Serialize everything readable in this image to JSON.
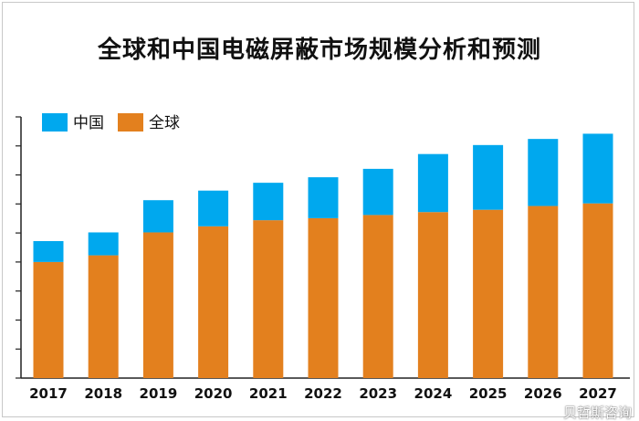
{
  "chart_data": {
    "type": "bar",
    "stacked": true,
    "title": "全球和中国电磁屏蔽市场规模分析和预测",
    "xlabel": "",
    "ylabel": "",
    "categories": [
      "2017",
      "2018",
      "2019",
      "2020",
      "2021",
      "2022",
      "2023",
      "2024",
      "2025",
      "2026",
      "2027"
    ],
    "series": [
      {
        "name": "全球",
        "color": "#E3801E",
        "values": [
          4.0,
          4.23,
          5.02,
          5.23,
          5.44,
          5.51,
          5.62,
          5.72,
          5.8,
          5.93,
          6.02
        ]
      },
      {
        "name": "中国",
        "color": "#00A8EE",
        "values": [
          0.72,
          0.79,
          1.11,
          1.23,
          1.29,
          1.41,
          1.59,
          2.0,
          2.23,
          2.31,
          2.4
        ]
      }
    ],
    "legend_order": [
      "中国",
      "全球"
    ],
    "ylim": [
      0,
      9
    ],
    "y_tick_labels_shown": false,
    "grid": false,
    "legend_position": "top-left"
  },
  "watermark": "贝哲斯咨询"
}
